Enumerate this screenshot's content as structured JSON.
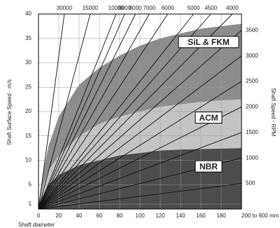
{
  "chart_data": {
    "type": "area",
    "x_label": "Shaft diameter",
    "y_label": "Shaft Surface Speed - m/s",
    "y2_label": "Shaft Speed - RPM",
    "x": [
      0,
      5,
      10,
      20,
      40,
      60,
      80,
      100,
      120,
      140,
      160,
      180,
      200
    ],
    "series": [
      {
        "name": "SiL & FKM",
        "color": "#8c8c8c",
        "values": [
          1,
          8,
          13,
          19,
          25.5,
          29,
          31.5,
          33.5,
          35,
          36,
          37,
          37.5,
          38
        ]
      },
      {
        "name": "ACM",
        "color": "#c4c4c4",
        "values": [
          1,
          5,
          8,
          11,
          15,
          17.5,
          19,
          20,
          21,
          21.5,
          22,
          22.3,
          22.5
        ]
      },
      {
        "name": "NBR",
        "color": "#4c4c4c",
        "values": [
          1,
          3,
          5,
          7,
          9,
          10,
          11,
          11.5,
          12,
          12.2,
          12.3,
          12.4,
          12.5
        ]
      }
    ],
    "rpm_lines": [
      30000,
      15000,
      10000,
      9000,
      8000,
      7000,
      6000,
      5000,
      4500,
      4000,
      3500,
      3000,
      2500,
      2000,
      1500,
      1000,
      500
    ],
    "xlim": [
      0,
      200
    ],
    "xticks": [
      0,
      20,
      40,
      60,
      80,
      100,
      120,
      140,
      160,
      180,
      {
        "value": 200,
        "label": "200 to 600 mm"
      }
    ],
    "ylim": [
      0,
      40
    ],
    "yticks": [
      1,
      5,
      10,
      15,
      20,
      25,
      30,
      35,
      40
    ],
    "grid": true
  }
}
